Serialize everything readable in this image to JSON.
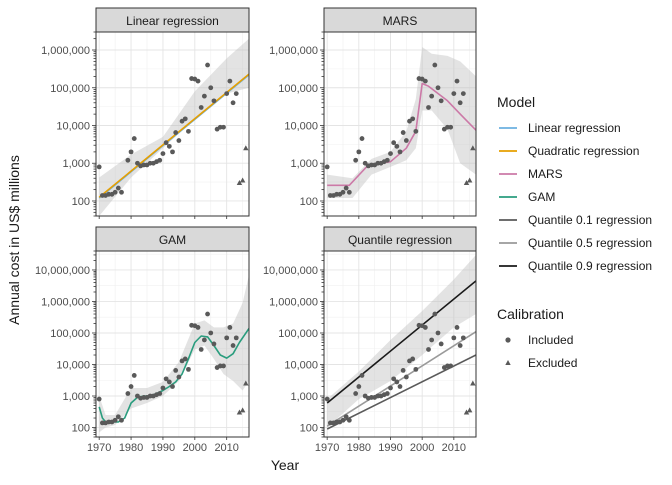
{
  "axes": {
    "xlabel": "Year",
    "ylabel": "Annual cost in US$ millions"
  },
  "legend": {
    "model_title": "Model",
    "model_items": [
      {
        "label": "Linear regression",
        "color": "#6cb1e1"
      },
      {
        "label": "Quadratic regression",
        "color": "#e69f00"
      },
      {
        "label": "MARS",
        "color": "#cc79a7"
      },
      {
        "label": "GAM",
        "color": "#2a9d7e"
      },
      {
        "label": "Quantile 0.1 regression",
        "color": "#5a5a5a"
      },
      {
        "label": "Quantile 0.5 regression",
        "color": "#9a9a9a"
      },
      {
        "label": "Quantile 0.9 regression",
        "color": "#1a1a1a"
      }
    ],
    "calibration_title": "Calibration",
    "calibration_items": [
      {
        "label": "Included",
        "shape": "circle"
      },
      {
        "label": "Excluded",
        "shape": "triangle"
      }
    ]
  },
  "chart_data": [
    {
      "type": "scatter",
      "title": "Linear regression",
      "xlim": [
        1969,
        2017
      ],
      "ylim": [
        40,
        3000000
      ],
      "yscale": "log",
      "xticks": [
        1970,
        1980,
        1990,
        2000,
        2010
      ],
      "yticks": [
        100,
        1000,
        10000,
        100000,
        1000000
      ],
      "ytick_labels": [
        "100",
        "1,000",
        "10,000",
        "100,000",
        "1,000,000"
      ],
      "grid": true,
      "ribbon": {
        "x": [
          1970,
          1980,
          1990,
          2000,
          2010,
          2017
        ],
        "lo": [
          40,
          420,
          2500,
          15000,
          70000,
          100000
        ],
        "hi": [
          420,
          1700,
          5000,
          80000,
          600000,
          2000000
        ]
      },
      "series": [
        {
          "name": "Linear regression",
          "color": "#6cb1e1",
          "x": [
            1970,
            2017
          ],
          "y": [
            120,
            220000
          ]
        },
        {
          "name": "Quadratic regression",
          "color": "#e69f00",
          "x": [
            1970,
            2017
          ],
          "y": [
            125,
            230000
          ]
        }
      ],
      "included": [
        [
          1970,
          800
        ],
        [
          1971,
          140
        ],
        [
          1972,
          140
        ],
        [
          1973,
          150
        ],
        [
          1974,
          150
        ],
        [
          1975,
          170
        ],
        [
          1976,
          220
        ],
        [
          1977,
          170
        ],
        [
          1979,
          1200
        ],
        [
          1980,
          2000
        ],
        [
          1981,
          4500
        ],
        [
          1982,
          1000
        ],
        [
          1983,
          850
        ],
        [
          1984,
          900
        ],
        [
          1985,
          900
        ],
        [
          1986,
          1000
        ],
        [
          1987,
          1000
        ],
        [
          1988,
          1100
        ],
        [
          1989,
          1200
        ],
        [
          1990,
          1800
        ],
        [
          1991,
          3500
        ],
        [
          1992,
          2800
        ],
        [
          1993,
          2000
        ],
        [
          1994,
          6500
        ],
        [
          1995,
          4000
        ],
        [
          1996,
          13000
        ],
        [
          1997,
          15000
        ],
        [
          1998,
          7000
        ],
        [
          1999,
          175000
        ],
        [
          2000,
          170000
        ],
        [
          2001,
          150000
        ],
        [
          2002,
          30000
        ],
        [
          2003,
          60000
        ],
        [
          2004,
          400000
        ],
        [
          2005,
          100000
        ],
        [
          2006,
          45000
        ],
        [
          2007,
          8000
        ],
        [
          2008,
          9000
        ],
        [
          2009,
          9000
        ],
        [
          2010,
          70000
        ],
        [
          2011,
          150000
        ],
        [
          2012,
          40000
        ],
        [
          2013,
          70000
        ]
      ],
      "excluded": [
        [
          2014,
          300
        ],
        [
          2015,
          350
        ],
        [
          2016,
          2500
        ]
      ]
    },
    {
      "type": "scatter",
      "title": "MARS",
      "xlim": [
        1969,
        2017
      ],
      "ylim": [
        40,
        3000000
      ],
      "yscale": "log",
      "xticks": [
        1970,
        1980,
        1990,
        2000,
        2010
      ],
      "yticks": [
        100,
        1000,
        10000,
        100000,
        1000000
      ],
      "ytick_labels": [
        "100",
        "1,000",
        "10,000",
        "100,000",
        "1,000,000"
      ],
      "grid": true,
      "ribbon": {
        "x": [
          1970,
          1978,
          1984,
          1990,
          1995,
          1998,
          2000,
          2003,
          2008,
          2012,
          2017
        ],
        "lo": [
          120,
          120,
          500,
          800,
          1200,
          2500,
          25000,
          25000,
          8000,
          1000,
          500
        ],
        "hi": [
          500,
          400,
          1300,
          2000,
          7000,
          50000,
          1200000,
          800000,
          700000,
          500000,
          200000
        ]
      },
      "series": [
        {
          "name": "MARS",
          "color": "#cc79a7",
          "x": [
            1970,
            1977,
            1983,
            1990,
            1995,
            1998,
            2000,
            2002,
            2008,
            2012,
            2017
          ],
          "y": [
            260,
            260,
            900,
            1100,
            2500,
            7000,
            130000,
            110000,
            45000,
            20000,
            7500
          ]
        }
      ],
      "included": [
        [
          1970,
          800
        ],
        [
          1971,
          140
        ],
        [
          1972,
          140
        ],
        [
          1973,
          150
        ],
        [
          1974,
          150
        ],
        [
          1975,
          170
        ],
        [
          1976,
          220
        ],
        [
          1977,
          170
        ],
        [
          1979,
          1200
        ],
        [
          1980,
          2000
        ],
        [
          1981,
          4500
        ],
        [
          1982,
          1000
        ],
        [
          1983,
          850
        ],
        [
          1984,
          900
        ],
        [
          1985,
          900
        ],
        [
          1986,
          1000
        ],
        [
          1987,
          1000
        ],
        [
          1988,
          1100
        ],
        [
          1989,
          1200
        ],
        [
          1990,
          1800
        ],
        [
          1991,
          3500
        ],
        [
          1992,
          2800
        ],
        [
          1993,
          2000
        ],
        [
          1994,
          6500
        ],
        [
          1995,
          4000
        ],
        [
          1996,
          13000
        ],
        [
          1997,
          15000
        ],
        [
          1998,
          7000
        ],
        [
          1999,
          175000
        ],
        [
          2000,
          170000
        ],
        [
          2001,
          150000
        ],
        [
          2002,
          30000
        ],
        [
          2003,
          60000
        ],
        [
          2004,
          400000
        ],
        [
          2005,
          100000
        ],
        [
          2006,
          45000
        ],
        [
          2007,
          8000
        ],
        [
          2008,
          9000
        ],
        [
          2009,
          9000
        ],
        [
          2010,
          70000
        ],
        [
          2011,
          150000
        ],
        [
          2012,
          40000
        ],
        [
          2013,
          70000
        ]
      ],
      "excluded": [
        [
          2014,
          300
        ],
        [
          2015,
          350
        ],
        [
          2016,
          2500
        ]
      ]
    },
    {
      "type": "scatter",
      "title": "GAM",
      "xlim": [
        1969,
        2017
      ],
      "ylim": [
        50,
        40000000
      ],
      "yscale": "log",
      "xticks": [
        1970,
        1980,
        1990,
        2000,
        2010
      ],
      "yticks": [
        100,
        1000,
        10000,
        100000,
        1000000,
        10000000
      ],
      "ytick_labels": [
        "100",
        "1,000",
        "10,000",
        "100,000",
        "1,000,000",
        "10,000,000"
      ],
      "grid": true,
      "ribbon": {
        "x": [
          1970,
          1972,
          1975,
          1980,
          1985,
          1990,
          1995,
          2000,
          2003,
          2006,
          2009,
          2012,
          2015,
          2017
        ],
        "lo": [
          70,
          100,
          120,
          400,
          600,
          1000,
          3000,
          30000,
          40000,
          15000,
          5000,
          3000,
          1500,
          3000
        ],
        "hi": [
          1000,
          250,
          250,
          1800,
          1800,
          2800,
          12000,
          200000,
          250000,
          150000,
          150000,
          200000,
          900000,
          7000000
        ]
      },
      "series": [
        {
          "name": "GAM",
          "color": "#2a9d7e",
          "x": [
            1970,
            1971,
            1972,
            1974,
            1976,
            1978,
            1980,
            1982,
            1984,
            1986,
            1988,
            1990,
            1992,
            1994,
            1996,
            1998,
            2000,
            2002,
            2004,
            2006,
            2008,
            2010,
            2012,
            2014,
            2017
          ],
          "y": [
            450,
            200,
            150,
            150,
            150,
            200,
            600,
            900,
            1000,
            1000,
            1200,
            1500,
            2000,
            2800,
            5000,
            15000,
            50000,
            80000,
            75000,
            40000,
            20000,
            16000,
            22000,
            50000,
            140000
          ]
        }
      ],
      "included": [
        [
          1970,
          800
        ],
        [
          1971,
          140
        ],
        [
          1972,
          140
        ],
        [
          1973,
          150
        ],
        [
          1974,
          150
        ],
        [
          1975,
          170
        ],
        [
          1976,
          220
        ],
        [
          1977,
          170
        ],
        [
          1979,
          1200
        ],
        [
          1980,
          2000
        ],
        [
          1981,
          4500
        ],
        [
          1982,
          1000
        ],
        [
          1983,
          850
        ],
        [
          1984,
          900
        ],
        [
          1985,
          900
        ],
        [
          1986,
          1000
        ],
        [
          1987,
          1000
        ],
        [
          1988,
          1100
        ],
        [
          1989,
          1200
        ],
        [
          1990,
          1800
        ],
        [
          1991,
          3500
        ],
        [
          1992,
          2800
        ],
        [
          1993,
          2000
        ],
        [
          1994,
          6500
        ],
        [
          1995,
          4000
        ],
        [
          1996,
          13000
        ],
        [
          1997,
          15000
        ],
        [
          1998,
          7000
        ],
        [
          1999,
          175000
        ],
        [
          2000,
          170000
        ],
        [
          2001,
          150000
        ],
        [
          2002,
          30000
        ],
        [
          2003,
          60000
        ],
        [
          2004,
          400000
        ],
        [
          2005,
          100000
        ],
        [
          2006,
          45000
        ],
        [
          2007,
          8000
        ],
        [
          2008,
          9000
        ],
        [
          2009,
          9000
        ],
        [
          2010,
          70000
        ],
        [
          2011,
          150000
        ],
        [
          2012,
          40000
        ],
        [
          2013,
          70000
        ]
      ],
      "excluded": [
        [
          2014,
          300
        ],
        [
          2015,
          350
        ],
        [
          2016,
          2500
        ]
      ]
    },
    {
      "type": "scatter",
      "title": "Quantile regression",
      "xlim": [
        1969,
        2017
      ],
      "ylim": [
        50,
        40000000
      ],
      "yscale": "log",
      "xticks": [
        1970,
        1980,
        1990,
        2000,
        2010
      ],
      "yticks": [
        100,
        1000,
        10000,
        100000,
        1000000,
        10000000
      ],
      "ytick_labels": [
        "100",
        "1,000",
        "10,000",
        "100,000",
        "1,000,000",
        "10,000,000"
      ],
      "grid": true,
      "ribbon": {
        "x": [
          1970,
          1980,
          1990,
          2000,
          2010,
          2017
        ],
        "lo": [
          100,
          800,
          3000,
          20000,
          150000,
          400000
        ],
        "hi": [
          800,
          6000,
          60000,
          500000,
          5000000,
          30000000
        ]
      },
      "series": [
        {
          "name": "Quantile 0.1 regression",
          "color": "#5a5a5a",
          "x": [
            1970,
            2017
          ],
          "y": [
            90,
            20000
          ]
        },
        {
          "name": "Quantile 0.5 regression",
          "color": "#9a9a9a",
          "x": [
            1970,
            2017
          ],
          "y": [
            110,
            110000
          ]
        },
        {
          "name": "Quantile 0.9 regression",
          "color": "#1a1a1a",
          "x": [
            1970,
            2017
          ],
          "y": [
            600,
            4500000
          ]
        }
      ],
      "included": [
        [
          1970,
          800
        ],
        [
          1971,
          140
        ],
        [
          1972,
          140
        ],
        [
          1973,
          150
        ],
        [
          1974,
          150
        ],
        [
          1975,
          170
        ],
        [
          1976,
          220
        ],
        [
          1977,
          170
        ],
        [
          1979,
          1200
        ],
        [
          1980,
          2000
        ],
        [
          1981,
          4500
        ],
        [
          1982,
          1000
        ],
        [
          1983,
          850
        ],
        [
          1984,
          900
        ],
        [
          1985,
          900
        ],
        [
          1986,
          1000
        ],
        [
          1987,
          1000
        ],
        [
          1988,
          1100
        ],
        [
          1989,
          1200
        ],
        [
          1990,
          1800
        ],
        [
          1991,
          3500
        ],
        [
          1992,
          2800
        ],
        [
          1993,
          2000
        ],
        [
          1994,
          6500
        ],
        [
          1995,
          4000
        ],
        [
          1996,
          13000
        ],
        [
          1997,
          15000
        ],
        [
          1998,
          7000
        ],
        [
          1999,
          175000
        ],
        [
          2000,
          170000
        ],
        [
          2001,
          150000
        ],
        [
          2002,
          30000
        ],
        [
          2003,
          60000
        ],
        [
          2004,
          400000
        ],
        [
          2005,
          100000
        ],
        [
          2006,
          45000
        ],
        [
          2007,
          8000
        ],
        [
          2008,
          9000
        ],
        [
          2009,
          9000
        ],
        [
          2010,
          70000
        ],
        [
          2011,
          150000
        ],
        [
          2012,
          40000
        ],
        [
          2013,
          70000
        ]
      ],
      "excluded": [
        [
          2014,
          300
        ],
        [
          2015,
          350
        ],
        [
          2016,
          2500
        ]
      ]
    }
  ]
}
